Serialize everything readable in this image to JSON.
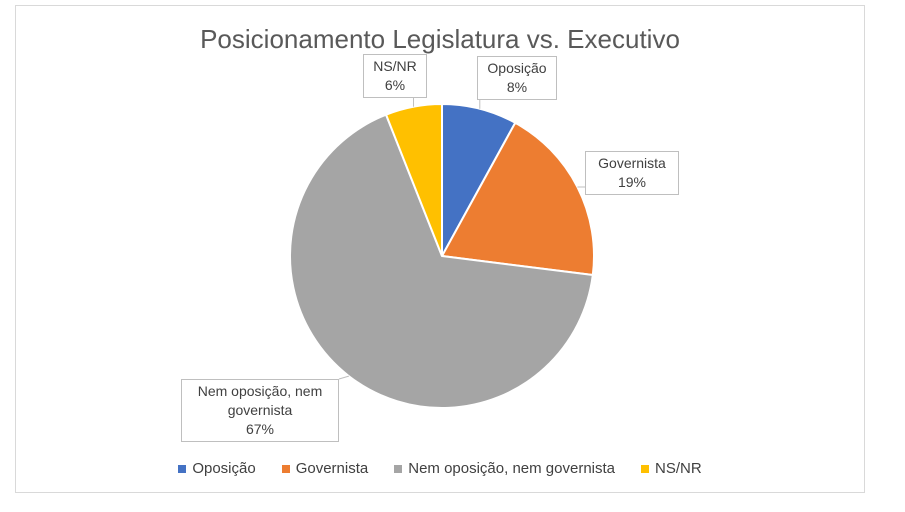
{
  "chart_data": {
    "type": "pie",
    "title": "Posicionamento Legislatura vs. Executivo",
    "categories": [
      "Oposição",
      "Governista",
      "Nem oposição, nem governista",
      "NS/NR"
    ],
    "values": [
      8,
      19,
      67,
      6
    ],
    "value_suffix": "%",
    "colors": [
      "#4472c4",
      "#ed7d31",
      "#a5a5a5",
      "#ffc000"
    ],
    "data_labels": [
      {
        "lines": [
          "Oposição",
          "8%"
        ]
      },
      {
        "lines": [
          "Governista",
          "19%"
        ]
      },
      {
        "lines": [
          "Nem oposição, nem",
          "governista",
          "67%"
        ]
      },
      {
        "lines": [
          "NS/NR",
          "6%"
        ]
      }
    ],
    "legend_position": "bottom"
  }
}
